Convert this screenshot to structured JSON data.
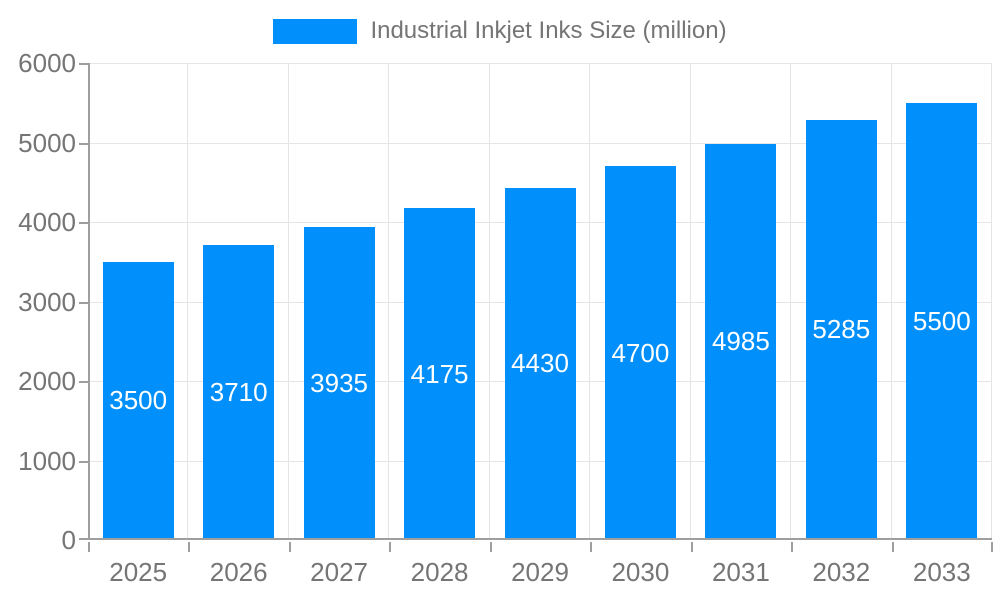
{
  "chart_data": {
    "type": "bar",
    "title": "Industrial Inkjet Inks Size (million)",
    "categories": [
      "2025",
      "2026",
      "2027",
      "2028",
      "2029",
      "2030",
      "2031",
      "2032",
      "2033"
    ],
    "values": [
      3500,
      3710,
      3935,
      4175,
      4430,
      4700,
      4985,
      5285,
      5500
    ],
    "series": [
      {
        "name": "Industrial Inkjet Inks Size (million)",
        "values": [
          3500,
          3710,
          3935,
          4175,
          4430,
          4700,
          4985,
          5285,
          5500
        ]
      }
    ],
    "xlabel": "",
    "ylabel": "",
    "ylim": [
      0,
      6000
    ],
    "yticks": [
      0,
      1000,
      2000,
      3000,
      4000,
      5000,
      6000
    ],
    "grid": true,
    "legend_position": "top",
    "value_label_position": "inside-center",
    "colors": {
      "bar": "#008FFB",
      "grid": "#e5e5e5",
      "axis": "#9e9e9e",
      "text": "#757575",
      "value_label": "#ffffff",
      "background": "#ffffff"
    }
  }
}
